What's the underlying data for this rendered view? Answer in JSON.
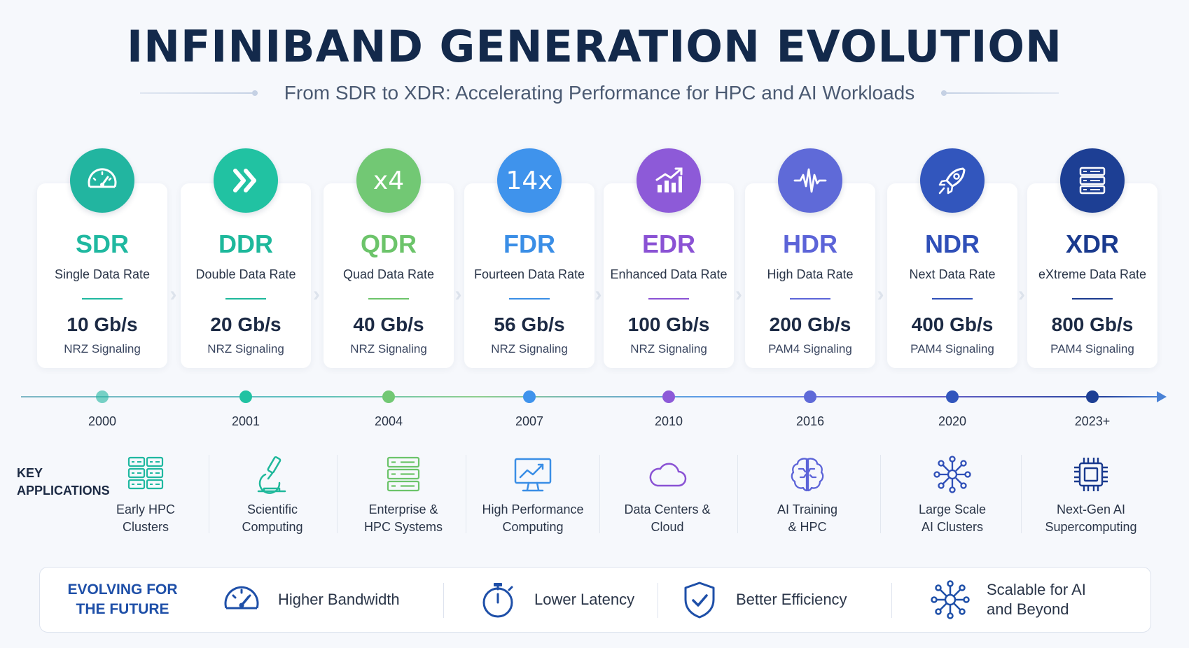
{
  "header": {
    "title": "INFINIBAND GENERATION EVOLUTION",
    "subtitle": "From SDR to XDR: Accelerating Performance for HPC and AI Workloads"
  },
  "generations": [
    {
      "abbr": "SDR",
      "name": "Single Data Rate",
      "speed": "10 Gb/s",
      "signaling": "NRZ Signaling",
      "year": "2000",
      "icon": "speedometer-icon",
      "color": "#1fb8a0",
      "icon_bg": "#22b5a0"
    },
    {
      "abbr": "DDR",
      "name": "Double Data Rate",
      "speed": "20 Gb/s",
      "signaling": "NRZ Signaling",
      "year": "2001",
      "icon": "double-chevron-icon",
      "color": "#1db89b",
      "icon_bg": "#21c2a2"
    },
    {
      "abbr": "QDR",
      "name": "Quad Data Rate",
      "speed": "40 Gb/s",
      "signaling": "NRZ Signaling",
      "year": "2004",
      "icon_text": "x4",
      "color": "#6cc46a",
      "icon_bg": "#72c874"
    },
    {
      "abbr": "FDR",
      "name": "Fourteen Data Rate",
      "speed": "56 Gb/s",
      "signaling": "NRZ Signaling",
      "year": "2007",
      "icon_text": "14x",
      "color": "#3a8ee6",
      "icon_bg": "#3f93ec"
    },
    {
      "abbr": "EDR",
      "name": "Enhanced Data Rate",
      "speed": "100 Gb/s",
      "signaling": "NRZ Signaling",
      "year": "2010",
      "icon": "growth-chart-icon",
      "color": "#8a52d4",
      "icon_bg": "#8d5ad8"
    },
    {
      "abbr": "HDR",
      "name": "High Data Rate",
      "speed": "200 Gb/s",
      "signaling": "PAM4 Signaling",
      "year": "2016",
      "icon": "waveform-icon",
      "color": "#5c64d8",
      "icon_bg": "#5f6ad8"
    },
    {
      "abbr": "NDR",
      "name": "Next Data Rate",
      "speed": "400 Gb/s",
      "signaling": "PAM4 Signaling",
      "year": "2020",
      "icon": "rocket-icon",
      "color": "#2f4fb8",
      "icon_bg": "#3256bd"
    },
    {
      "abbr": "XDR",
      "name": "eXtreme Data Rate",
      "speed": "800 Gb/s",
      "signaling": "PAM4 Signaling",
      "year": "2023+",
      "icon": "server-stack-icon",
      "color": "#1a3a8e",
      "icon_bg": "#1d3f94"
    }
  ],
  "applications": {
    "label_line1": "KEY",
    "label_line2": "APPLICATIONS",
    "items": [
      {
        "line1": "Early HPC",
        "line2": "Clusters",
        "icon": "server-grid-icon"
      },
      {
        "line1": "Scientific",
        "line2": "Computing",
        "icon": "microscope-icon"
      },
      {
        "line1": "Enterprise &",
        "line2": "HPC Systems",
        "icon": "server-rack-icon"
      },
      {
        "line1": "High Performance",
        "line2": "Computing",
        "icon": "monitor-chart-icon"
      },
      {
        "line1": "Data Centers &",
        "line2": "Cloud",
        "icon": "cloud-icon"
      },
      {
        "line1": "AI Training",
        "line2": "& HPC",
        "icon": "brain-icon"
      },
      {
        "line1": "Large Scale",
        "line2": "AI Clusters",
        "icon": "network-hub-icon"
      },
      {
        "line1": "Next-Gen AI",
        "line2": "Supercomputing",
        "icon": "chip-icon"
      }
    ]
  },
  "footer": {
    "title_line1": "EVOLVING FOR",
    "title_line2": "THE FUTURE",
    "items": [
      {
        "line1": "Higher Bandwidth",
        "icon": "gauge-icon"
      },
      {
        "line1": "Lower Latency",
        "icon": "stopwatch-icon"
      },
      {
        "line1": "Better Efficiency",
        "icon": "shield-check-icon"
      },
      {
        "line1": "Scalable for AI",
        "line2": "and Beyond",
        "icon": "network-icon"
      }
    ]
  }
}
